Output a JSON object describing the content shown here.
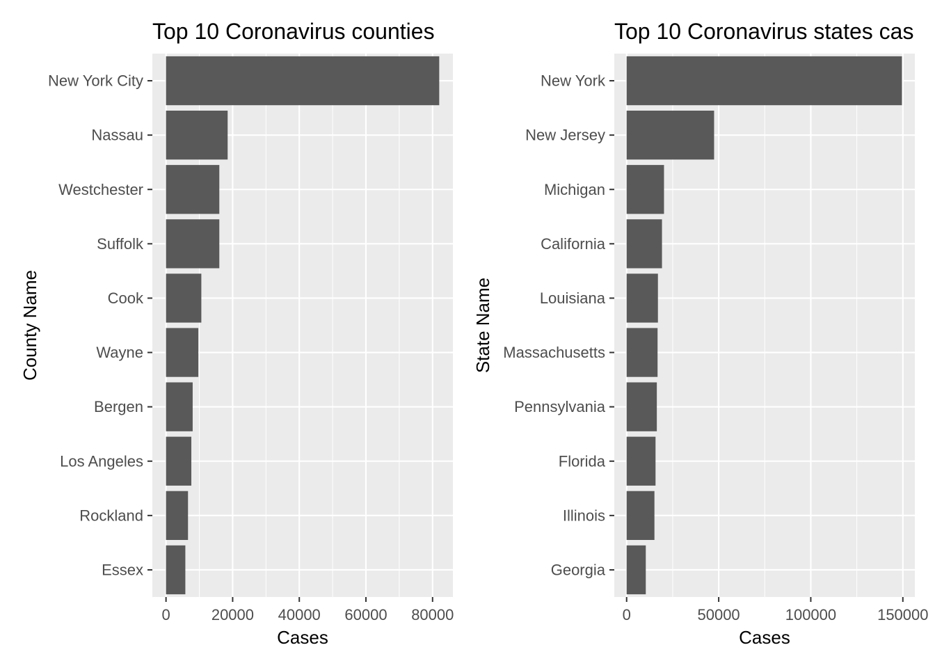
{
  "chart_data": [
    {
      "type": "bar",
      "orientation": "horizontal",
      "title": "Top 10 Coronavirus counties",
      "xlabel": "Cases",
      "ylabel": "County Name",
      "categories": [
        "New York City",
        "Nassau",
        "Westchester",
        "Suffolk",
        "Cook",
        "Wayne",
        "Bergen",
        "Los Angeles",
        "Rockland",
        "Essex"
      ],
      "values": [
        82000,
        18500,
        16000,
        16000,
        10600,
        9700,
        8000,
        7600,
        6600,
        5800
      ],
      "xticks": [
        0,
        20000,
        40000,
        60000,
        80000
      ],
      "xtick_labels": [
        "0",
        "20000",
        "40000",
        "60000",
        "80000"
      ],
      "xlim": [
        -4100,
        86100
      ],
      "bar_color": "#595959",
      "panel_color": "#ebebeb",
      "grid": true
    },
    {
      "type": "bar",
      "orientation": "horizontal",
      "title": "Top 10 Coronavirus states cas",
      "xlabel": "Cases",
      "ylabel": "State Name",
      "categories": [
        "New York",
        "New Jersey",
        "Michigan",
        "California",
        "Louisiana",
        "Massachusetts",
        "Pennsylvania",
        "Florida",
        "Illinois",
        "Georgia"
      ],
      "values": [
        149500,
        47500,
        20300,
        19200,
        17000,
        16800,
        16400,
        15700,
        15100,
        10400
      ],
      "xticks": [
        0,
        50000,
        100000,
        150000
      ],
      "xtick_labels": [
        "0",
        "50000",
        "100000",
        "150000"
      ],
      "xlim": [
        -6700,
        156500
      ],
      "bar_color": "#595959",
      "panel_color": "#ebebeb",
      "grid": true
    }
  ]
}
